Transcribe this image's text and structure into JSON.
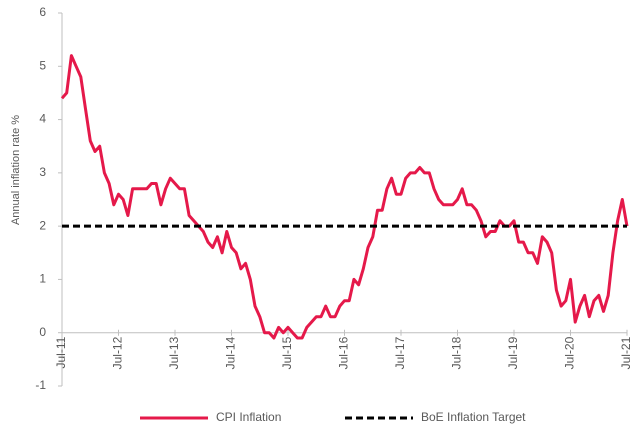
{
  "chart_data": {
    "type": "line",
    "ylabel": "Annual inflation rate %",
    "categories": [
      "Jul-11",
      null,
      null,
      null,
      null,
      null,
      null,
      null,
      null,
      null,
      null,
      null,
      "Jul-12",
      null,
      null,
      null,
      null,
      null,
      null,
      null,
      null,
      null,
      null,
      null,
      "Jul-13",
      null,
      null,
      null,
      null,
      null,
      null,
      null,
      null,
      null,
      null,
      null,
      "Jul-14",
      null,
      null,
      null,
      null,
      null,
      null,
      null,
      null,
      null,
      null,
      null,
      "Jul-15",
      null,
      null,
      null,
      null,
      null,
      null,
      null,
      null,
      null,
      null,
      null,
      "Jul-16",
      null,
      null,
      null,
      null,
      null,
      null,
      null,
      null,
      null,
      null,
      null,
      "Jul-17",
      null,
      null,
      null,
      null,
      null,
      null,
      null,
      null,
      null,
      null,
      null,
      "Jul-18",
      null,
      null,
      null,
      null,
      null,
      null,
      null,
      null,
      null,
      null,
      null,
      "Jul-19",
      null,
      null,
      null,
      null,
      null,
      null,
      null,
      null,
      null,
      null,
      null,
      "Jul-20",
      null,
      null,
      null,
      null,
      null,
      null,
      null,
      null,
      null,
      null,
      null,
      "Jul-21"
    ],
    "series": [
      {
        "name": "CPI Inflation",
        "color": "#e5194a",
        "dashed": false,
        "values": [
          4.4,
          4.5,
          5.2,
          5.0,
          4.8,
          4.2,
          3.6,
          3.4,
          3.5,
          3.0,
          2.8,
          2.4,
          2.6,
          2.5,
          2.2,
          2.7,
          2.7,
          2.7,
          2.7,
          2.8,
          2.8,
          2.4,
          2.7,
          2.9,
          2.8,
          2.7,
          2.7,
          2.2,
          2.1,
          2.0,
          1.9,
          1.7,
          1.6,
          1.8,
          1.5,
          1.9,
          1.6,
          1.5,
          1.2,
          1.3,
          1.0,
          0.5,
          0.3,
          0.0,
          0.0,
          -0.1,
          0.1,
          0.0,
          0.1,
          0.0,
          -0.1,
          -0.1,
          0.1,
          0.2,
          0.3,
          0.3,
          0.5,
          0.3,
          0.3,
          0.5,
          0.6,
          0.6,
          1.0,
          0.9,
          1.2,
          1.6,
          1.8,
          2.3,
          2.3,
          2.7,
          2.9,
          2.6,
          2.6,
          2.9,
          3.0,
          3.0,
          3.1,
          3.0,
          3.0,
          2.7,
          2.5,
          2.4,
          2.4,
          2.4,
          2.5,
          2.7,
          2.4,
          2.4,
          2.3,
          2.1,
          1.8,
          1.9,
          1.9,
          2.1,
          2.0,
          2.0,
          2.1,
          1.7,
          1.7,
          1.5,
          1.5,
          1.3,
          1.8,
          1.7,
          1.5,
          0.8,
          0.5,
          0.6,
          1.0,
          0.2,
          0.5,
          0.7,
          0.3,
          0.6,
          0.7,
          0.4,
          0.7,
          1.5,
          2.1,
          2.5,
          2.0
        ]
      },
      {
        "name": "BoE Inflation Target",
        "color": "#000000",
        "dashed": true,
        "values": [
          2,
          2,
          2,
          2,
          2,
          2,
          2,
          2,
          2,
          2,
          2,
          2,
          2,
          2,
          2,
          2,
          2,
          2,
          2,
          2,
          2,
          2,
          2,
          2,
          2,
          2,
          2,
          2,
          2,
          2,
          2,
          2,
          2,
          2,
          2,
          2,
          2,
          2,
          2,
          2,
          2,
          2,
          2,
          2,
          2,
          2,
          2,
          2,
          2,
          2,
          2,
          2,
          2,
          2,
          2,
          2,
          2,
          2,
          2,
          2,
          2,
          2,
          2,
          2,
          2,
          2,
          2,
          2,
          2,
          2,
          2,
          2,
          2,
          2,
          2,
          2,
          2,
          2,
          2,
          2,
          2,
          2,
          2,
          2,
          2,
          2,
          2,
          2,
          2,
          2,
          2,
          2,
          2,
          2,
          2,
          2,
          2,
          2,
          2,
          2,
          2,
          2,
          2,
          2,
          2,
          2,
          2,
          2,
          2,
          2,
          2,
          2,
          2,
          2,
          2,
          2,
          2,
          2,
          2,
          2,
          2
        ]
      }
    ],
    "ylim": [
      -1,
      6
    ],
    "yticks": [
      -1,
      0,
      1,
      2,
      3,
      4,
      5,
      6
    ],
    "grid": false,
    "legend": "bottom"
  }
}
